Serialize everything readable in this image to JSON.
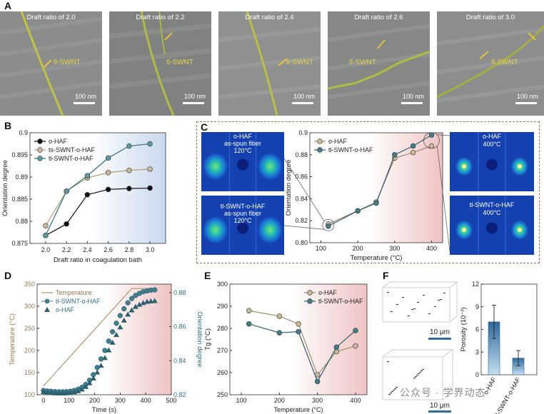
{
  "panel_labels": {
    "a": "A",
    "b": "B",
    "c": "C",
    "d": "D",
    "e": "E",
    "f": "F"
  },
  "tem_images": [
    {
      "caption": "Draft ratio of 2.0",
      "label": "tl-SWNT",
      "scale": "100 nm"
    },
    {
      "caption": "Draft ratio of 2.2",
      "label": "tl-SWNT",
      "scale": "100 nm"
    },
    {
      "caption": "Draft ratio of 2.4",
      "label": "tl-SWNT",
      "scale": "100 nm"
    },
    {
      "caption": "Draft ratio of 2.6",
      "label": "tl-SWNT",
      "scale": "100 nm"
    },
    {
      "caption": "Draft ratio of 3.0",
      "label": "tl-SWNT",
      "scale": "100 nm"
    }
  ],
  "heatmaps": {
    "tl": {
      "line1": "o-HAF",
      "line2": "as-spun fiber",
      "line3": "120°C"
    },
    "bl": {
      "line1": "tl-SWNT-o-HAF",
      "line2": "as-spun fiber",
      "line3": "120°C"
    },
    "tr": {
      "line1": "o-HAF",
      "line2": "400°C"
    },
    "br": {
      "line1": "tl-SWNT-o-HAF",
      "line2": "400°C"
    }
  },
  "colors": {
    "black": "#1a1a1a",
    "tan": "#b7a37a",
    "teal": "#3c7a86",
    "darkteal": "#2c5f70",
    "brown": "#a08c6c"
  },
  "chart_data": [
    {
      "id": "B",
      "type": "line",
      "x": [
        2.0,
        2.2,
        2.4,
        2.6,
        2.8,
        3.0
      ],
      "xlabel": "Draft ratio in  coagulation bath",
      "ylabel": "Orientation degree",
      "xlim": [
        1.85,
        3.15
      ],
      "ylim": [
        0.875,
        0.9
      ],
      "xticks": [
        "2.0",
        "2.2",
        "2.4",
        "2.6",
        "2.8",
        "3.0"
      ],
      "yticks": [
        "0.875",
        "0.88",
        "0.885",
        "0.89",
        "0.895",
        "0.9"
      ],
      "legend_position": "top-left",
      "series": [
        {
          "name": "o-HAF",
          "values": [
            0.8768,
            0.8794,
            0.886,
            0.8872,
            0.8874,
            0.8875
          ]
        },
        {
          "name": "ts-SWNT-o-HAF",
          "values": [
            0.879,
            0.8868,
            0.8898,
            0.891,
            0.8915,
            0.8918
          ]
        },
        {
          "name": "tl-SWNT-o-HAF",
          "values": [
            0.8768,
            0.8868,
            0.8903,
            0.8943,
            0.897,
            0.8975
          ]
        }
      ]
    },
    {
      "id": "C",
      "type": "line",
      "x": [
        120,
        200,
        250,
        300,
        350,
        400
      ],
      "xlabel": "Temperature (°C)",
      "ylabel": "Orientation degree",
      "xlim": [
        70,
        430
      ],
      "ylim": [
        0.8,
        0.9
      ],
      "xticks": [
        "100",
        "200",
        "300",
        "400"
      ],
      "yticks": [
        "0.80",
        "0.82",
        "0.84",
        "0.86",
        "0.88",
        "0.9"
      ],
      "legend_position": "top-left",
      "series": [
        {
          "name": "o-HAF",
          "values": [
            0.817,
            0.829,
            0.837,
            0.877,
            0.882,
            0.888
          ]
        },
        {
          "name": "tl-SWNT-o-HAF",
          "values": [
            0.815,
            0.829,
            0.836,
            0.88,
            0.888,
            0.898
          ]
        }
      ]
    },
    {
      "id": "D",
      "type": "line",
      "xlabel": "Time (s)",
      "ylabel": "Temperature (°C)",
      "y2label": "Orientation degree",
      "xlim": [
        -25,
        500
      ],
      "ylim": [
        100,
        350
      ],
      "y2lim": [
        0.82,
        0.885
      ],
      "xticks": [
        "0",
        "100",
        "200",
        "300",
        "400",
        "500"
      ],
      "yticks": [
        "100",
        "150",
        "200",
        "250",
        "300",
        "350"
      ],
      "y2ticks": [
        "0.82",
        "0.84",
        "0.86",
        "0.88"
      ],
      "legend_position": "top-left",
      "temperature": {
        "name": "Temperature",
        "x": [
          0,
          345,
          440
        ],
        "values": [
          120,
          340,
          340
        ]
      },
      "series": [
        {
          "name": "tl-SWNT-o-HAF",
          "x": [
            0,
            15,
            30,
            45,
            60,
            75,
            90,
            105,
            120,
            135,
            150,
            165,
            180,
            195,
            210,
            225,
            240,
            255,
            270,
            285,
            300,
            315,
            330,
            345,
            360,
            375,
            390,
            405,
            420,
            435
          ],
          "values": [
            0.8225,
            0.8222,
            0.822,
            0.8218,
            0.8217,
            0.8217,
            0.8218,
            0.822,
            0.8225,
            0.8232,
            0.8243,
            0.826,
            0.8285,
            0.8318,
            0.836,
            0.841,
            0.846,
            0.8515,
            0.857,
            0.862,
            0.8665,
            0.8705,
            0.874,
            0.8765,
            0.8783,
            0.8795,
            0.8805,
            0.881,
            0.8814,
            0.8816
          ]
        },
        {
          "name": "o-HAF",
          "x": [
            0,
            15,
            30,
            45,
            60,
            75,
            90,
            105,
            120,
            135,
            150,
            165,
            180,
            195,
            210,
            225,
            240,
            255,
            270,
            285,
            300,
            315,
            330,
            345,
            360,
            375,
            390,
            405,
            420,
            435
          ],
          "values": [
            0.8225,
            0.8222,
            0.822,
            0.8218,
            0.8217,
            0.8217,
            0.8218,
            0.822,
            0.8224,
            0.823,
            0.824,
            0.8255,
            0.8277,
            0.8305,
            0.834,
            0.838,
            0.8425,
            0.847,
            0.8515,
            0.856,
            0.8605,
            0.8645,
            0.868,
            0.8705,
            0.8725,
            0.8738,
            0.8748,
            0.8755,
            0.8758,
            0.876
          ]
        }
      ]
    },
    {
      "id": "E",
      "type": "line",
      "x": [
        120,
        200,
        250,
        300,
        350,
        400
      ],
      "xlabel": "Temperature (°C)",
      "ylabel": "Tg (°C)",
      "xlim": [
        70,
        430
      ],
      "ylim": [
        250,
        300
      ],
      "xticks": [
        "100",
        "200",
        "300",
        "400"
      ],
      "yticks": [
        "250",
        "260",
        "270",
        "280",
        "290",
        "300"
      ],
      "legend_position": "top-right",
      "series": [
        {
          "name": "o-HAF",
          "values": [
            288,
            285.5,
            282,
            259,
            269.5,
            272
          ]
        },
        {
          "name": "tl-SWNT-o-HAF",
          "values": [
            282,
            278,
            278.5,
            256,
            271.5,
            279
          ]
        }
      ]
    },
    {
      "id": "F",
      "type": "bar",
      "categories": [
        "o-HAF",
        "tl-SWNT-o-HAF"
      ],
      "values": [
        7.0,
        2.2
      ],
      "errors": [
        2.2,
        1.0
      ],
      "ylabel": "Porosity (10⁻³)",
      "ylim": [
        0,
        12
      ],
      "yticks": [
        "0",
        "3",
        "6",
        "9",
        "12"
      ],
      "scale_bars": [
        "10 μm",
        "10 μm"
      ]
    }
  ],
  "watermark": "公众号 · 学界动态"
}
